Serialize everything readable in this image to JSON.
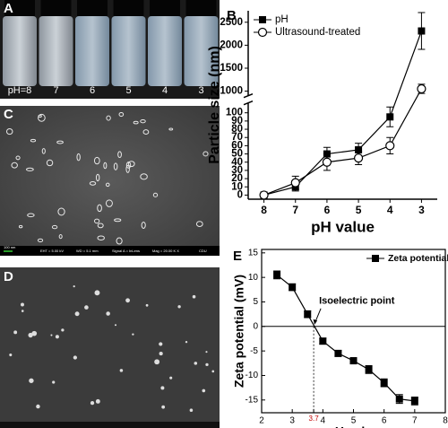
{
  "photos": {
    "A": {
      "label": "A",
      "vial_labels": [
        "pH=8",
        "7",
        "6",
        "5",
        "4",
        "3"
      ]
    },
    "C": {
      "label": "C",
      "footer": [
        "100 nm",
        "EHT = 5.00 kV",
        "WD = 5.1 mm",
        "Signal A = InLens",
        "Mag = 20.00 K X",
        "CDU"
      ]
    },
    "D": {
      "label": "D"
    }
  },
  "chart_data": [
    {
      "type": "line",
      "panel": "B",
      "xlabel": "pH value",
      "ylabel": "Particle size (nm)",
      "categories": [
        "8",
        "7",
        "6",
        "5",
        "4",
        "3"
      ],
      "series": [
        {
          "name": "pH",
          "color": "#000000",
          "marker": "square",
          "values": [
            0,
            10,
            50,
            55,
            95,
            2310
          ],
          "errors": [
            2,
            5,
            8,
            8,
            12,
            400
          ]
        },
        {
          "name": "Ultrasound-treated",
          "color": "#000000",
          "marker": "circle",
          "values": [
            0,
            15,
            40,
            45,
            60,
            1050
          ],
          "errors": [
            2,
            8,
            10,
            8,
            10,
            100
          ]
        }
      ],
      "ylim": [
        [
          -5,
          112
        ],
        [
          900,
          2750
        ]
      ],
      "yticks": [
        [
          0,
          10,
          20,
          30,
          40,
          50,
          60,
          70,
          80,
          90,
          100
        ],
        [
          1000,
          1500,
          2000,
          2500
        ]
      ],
      "legend": "upper left"
    },
    {
      "type": "line",
      "panel": "E",
      "xlabel": "pH value",
      "ylabel": "Zeta potential (mV)",
      "x": [
        2.5,
        3,
        3.5,
        4,
        4.5,
        5,
        5.5,
        6,
        6.5,
        7
      ],
      "series": [
        {
          "name": "Zeta potential",
          "color": "#000000",
          "marker": "square",
          "values": [
            10.5,
            8,
            2.5,
            -3,
            -5.5,
            -7,
            -8.8,
            -11.5,
            -14.8,
            -15.2
          ],
          "errors": [
            0.8,
            0.7,
            0.7,
            0.6,
            0.6,
            0.6,
            0.8,
            0.8,
            0.9,
            0.8
          ]
        }
      ],
      "xlim": [
        2,
        8
      ],
      "xticks": [
        2,
        3,
        3.7,
        4,
        5,
        6,
        7,
        8
      ],
      "ylim": [
        -17.6,
        15.7
      ],
      "yticks": [
        -15,
        -10,
        -5,
        0,
        5,
        10,
        15
      ],
      "hline": 0,
      "annotation": {
        "text": "Isoelectric point",
        "x": 3.7,
        "y": 0
      },
      "legend": "upper right"
    }
  ]
}
